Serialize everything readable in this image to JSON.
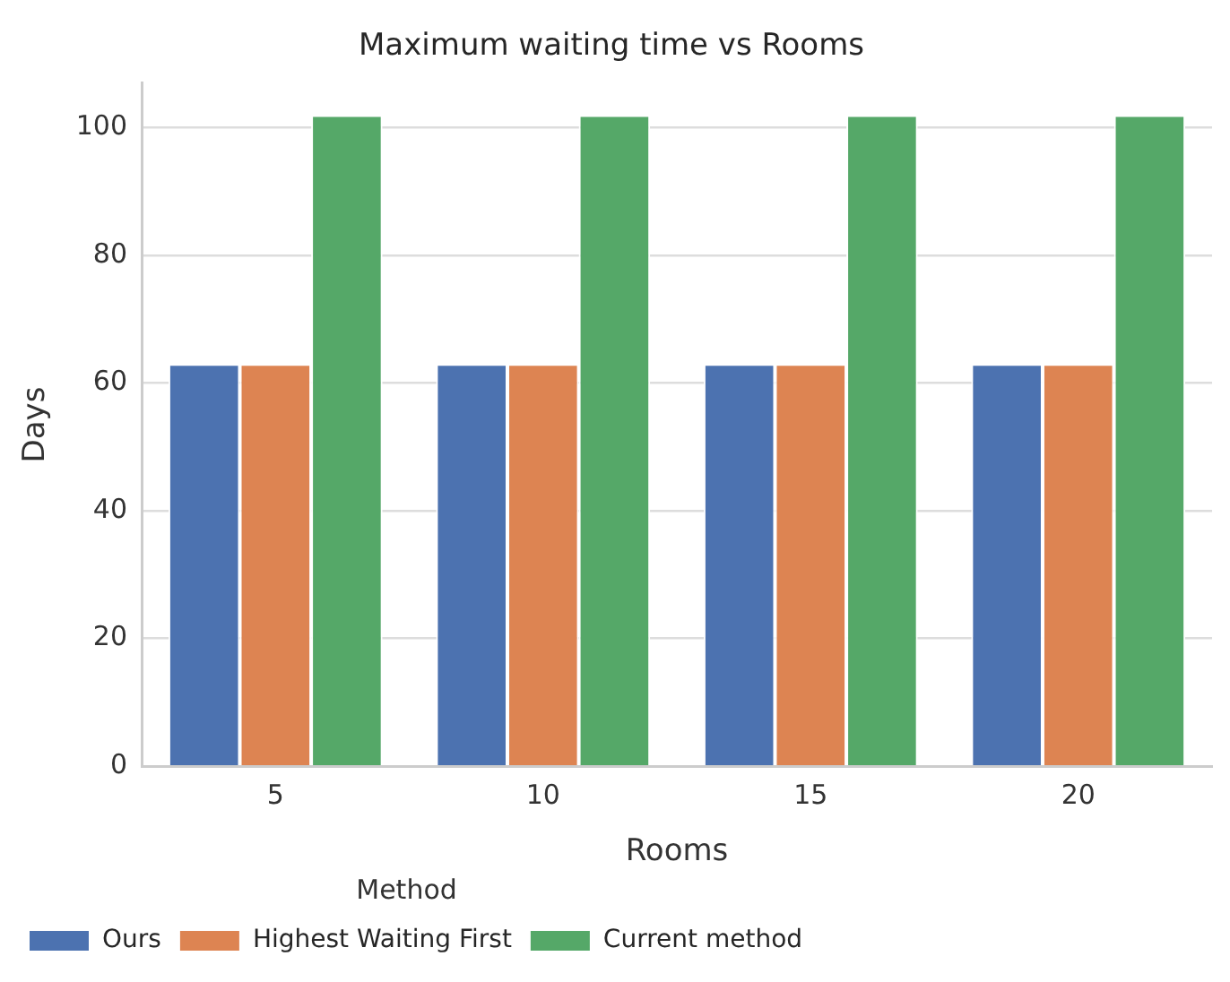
{
  "chart_data": {
    "type": "bar",
    "title": "Maximum waiting time vs Rooms",
    "xlabel": "Rooms",
    "ylabel": "Days",
    "legend_title": "Method",
    "categories": [
      "5",
      "10",
      "15",
      "20"
    ],
    "series": [
      {
        "name": "Ours",
        "color": "#4c72b0",
        "values": [
          63,
          63,
          63,
          63
        ]
      },
      {
        "name": "Highest Waiting First",
        "color": "#dd8452",
        "values": [
          63,
          63,
          63,
          63
        ]
      },
      {
        "name": "Current method",
        "color": "#55a868",
        "values": [
          102,
          102,
          102,
          102
        ]
      }
    ],
    "ylim": [
      0,
      107
    ],
    "yticks": [
      0,
      20,
      40,
      60,
      80,
      100
    ],
    "grid": "y",
    "legend": "bottom left"
  }
}
